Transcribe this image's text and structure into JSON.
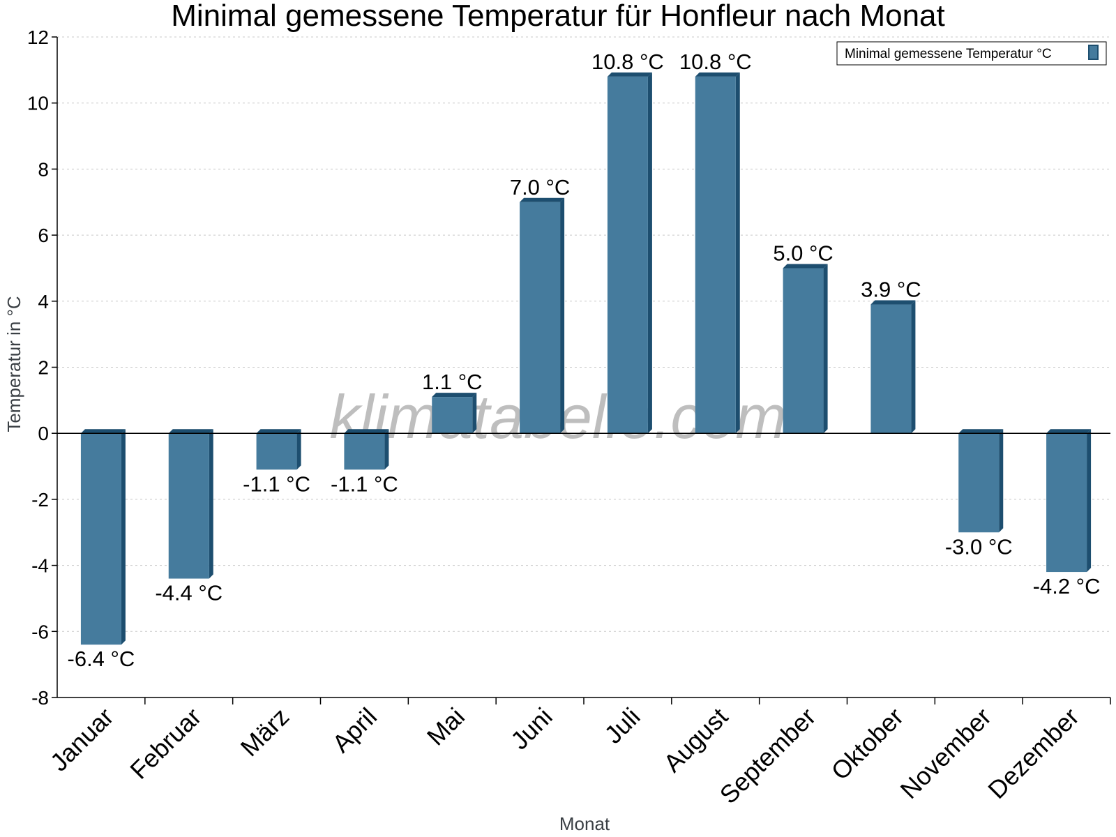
{
  "chart_data": {
    "type": "bar",
    "title": "Minimal gemessene Temperatur für Honfleur nach Monat",
    "xlabel": "Monat",
    "ylabel": "Temperatur in °C",
    "ylim": [
      -8,
      12
    ],
    "ytick_step": 2,
    "grid": true,
    "legend_position": "top-right",
    "categories": [
      "Januar",
      "Februar",
      "März",
      "April",
      "Mai",
      "Juni",
      "Juli",
      "August",
      "September",
      "Oktober",
      "November",
      "Dezember"
    ],
    "series": [
      {
        "name": "Minimal gemessene Temperatur °C",
        "values": [
          -6.4,
          -4.4,
          -1.1,
          -1.1,
          1.1,
          7.0,
          10.8,
          10.8,
          5.0,
          3.9,
          -3.0,
          -4.2
        ],
        "labels": [
          "-6.4 °C",
          "-4.4 °C",
          "-1.1 °C",
          "-1.1 °C",
          "1.1 °C",
          "7.0 °C",
          "10.8 °C",
          "10.8 °C",
          "5.0 °C",
          "3.9 °C",
          "-3.0 °C",
          "-4.2 °C"
        ]
      }
    ],
    "colors": {
      "bar": "#457b9d",
      "bar_side": "#1d4e6f",
      "grid": "#c8c8c8"
    },
    "watermark": "klimatabelle.com"
  }
}
